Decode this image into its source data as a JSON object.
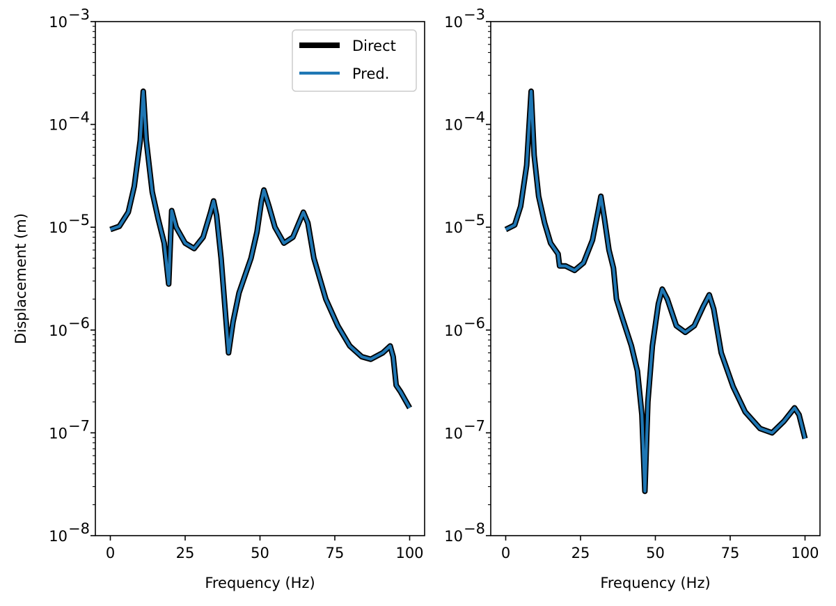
{
  "chart_data": [
    {
      "type": "line",
      "xlabel": "Frequency (Hz)",
      "ylabel": "Displacement (m)",
      "yscale": "log",
      "xlim": [
        -5,
        105
      ],
      "ylim": [
        1e-08,
        0.001
      ],
      "xticks": [
        "0",
        "25",
        "50",
        "75",
        "100"
      ],
      "yticks": [
        {
          "base": "10",
          "exp": "−8"
        },
        {
          "base": "10",
          "exp": "−7"
        },
        {
          "base": "10",
          "exp": "−6"
        },
        {
          "base": "10",
          "exp": "−5"
        },
        {
          "base": "10",
          "exp": "−4"
        },
        {
          "base": "10",
          "exp": "−3"
        }
      ],
      "grid": false,
      "legend": {
        "placement": "upper-right",
        "entries": [
          "Direct",
          "Pred."
        ]
      },
      "series": [
        {
          "name": "Direct",
          "color": "#000000",
          "points": [
            [
              0,
              9.5e-06
            ],
            [
              3,
              1.02e-05
            ],
            [
              6,
              1.4e-05
            ],
            [
              8,
              2.5e-05
            ],
            [
              10,
              7e-05
            ],
            [
              11,
              0.00021
            ],
            [
              12,
              7e-05
            ],
            [
              14,
              2.2e-05
            ],
            [
              16,
              1.2e-05
            ],
            [
              18,
              7e-06
            ],
            [
              19.5,
              2.8e-06
            ],
            [
              20.5,
              1.45e-05
            ],
            [
              22,
              1e-05
            ],
            [
              25,
              7e-06
            ],
            [
              28,
              6.2e-06
            ],
            [
              31,
              8e-06
            ],
            [
              33.5,
              1.4e-05
            ],
            [
              34.5,
              1.8e-05
            ],
            [
              35.5,
              1.3e-05
            ],
            [
              37,
              5e-06
            ],
            [
              39.5,
              6e-07
            ],
            [
              41,
              1.2e-06
            ],
            [
              43,
              2.3e-06
            ],
            [
              47,
              5e-06
            ],
            [
              49,
              9e-06
            ],
            [
              50.5,
              1.8e-05
            ],
            [
              51.3,
              2.3e-05
            ],
            [
              53,
              1.6e-05
            ],
            [
              55,
              1e-05
            ],
            [
              58,
              7e-06
            ],
            [
              61,
              8e-06
            ],
            [
              63,
              1.1e-05
            ],
            [
              64.5,
              1.4e-05
            ],
            [
              66,
              1.1e-05
            ],
            [
              68,
              5e-06
            ],
            [
              72,
              2e-06
            ],
            [
              76,
              1.1e-06
            ],
            [
              80,
              7e-07
            ],
            [
              84,
              5.5e-07
            ],
            [
              87,
              5.2e-07
            ],
            [
              91,
              6e-07
            ],
            [
              93.5,
              7e-07
            ],
            [
              94.5,
              5.5e-07
            ],
            [
              95.5,
              2.9e-07
            ],
            [
              97,
              2.5e-07
            ],
            [
              100,
              1.75e-07
            ]
          ]
        },
        {
          "name": "Pred.",
          "color": "#1f77b4",
          "points": [
            [
              0,
              9.5e-06
            ],
            [
              3,
              1.02e-05
            ],
            [
              6,
              1.4e-05
            ],
            [
              8,
              2.5e-05
            ],
            [
              10,
              7e-05
            ],
            [
              11,
              0.00021
            ],
            [
              12,
              7e-05
            ],
            [
              14,
              2.2e-05
            ],
            [
              16,
              1.2e-05
            ],
            [
              18,
              7e-06
            ],
            [
              19.5,
              2.8e-06
            ],
            [
              20.5,
              1.45e-05
            ],
            [
              22,
              1e-05
            ],
            [
              25,
              7e-06
            ],
            [
              28,
              6.2e-06
            ],
            [
              31,
              8e-06
            ],
            [
              33.5,
              1.4e-05
            ],
            [
              34.5,
              1.8e-05
            ],
            [
              35.5,
              1.3e-05
            ],
            [
              37,
              5e-06
            ],
            [
              39.5,
              6e-07
            ],
            [
              41,
              1.2e-06
            ],
            [
              43,
              2.3e-06
            ],
            [
              47,
              5e-06
            ],
            [
              49,
              9e-06
            ],
            [
              50.5,
              1.8e-05
            ],
            [
              51.3,
              2.3e-05
            ],
            [
              53,
              1.6e-05
            ],
            [
              55,
              1e-05
            ],
            [
              58,
              7e-06
            ],
            [
              61,
              8e-06
            ],
            [
              63,
              1.1e-05
            ],
            [
              64.5,
              1.4e-05
            ],
            [
              66,
              1.1e-05
            ],
            [
              68,
              5e-06
            ],
            [
              72,
              2e-06
            ],
            [
              76,
              1.1e-06
            ],
            [
              80,
              7e-07
            ],
            [
              84,
              5.5e-07
            ],
            [
              87,
              5.2e-07
            ],
            [
              91,
              6e-07
            ],
            [
              93.5,
              7e-07
            ],
            [
              94.5,
              5.5e-07
            ],
            [
              95.5,
              2.9e-07
            ],
            [
              97,
              2.5e-07
            ],
            [
              100,
              1.75e-07
            ]
          ]
        }
      ]
    },
    {
      "type": "line",
      "xlabel": "Frequency (Hz)",
      "ylabel": "",
      "yscale": "log",
      "xlim": [
        -5,
        105
      ],
      "ylim": [
        1e-08,
        0.001
      ],
      "xticks": [
        "0",
        "25",
        "50",
        "75",
        "100"
      ],
      "yticks": [
        {
          "base": "10",
          "exp": "−8"
        },
        {
          "base": "10",
          "exp": "−7"
        },
        {
          "base": "10",
          "exp": "−6"
        },
        {
          "base": "10",
          "exp": "−5"
        },
        {
          "base": "10",
          "exp": "−4"
        },
        {
          "base": "10",
          "exp": "−3"
        }
      ],
      "grid": false,
      "legend": null,
      "series": [
        {
          "name": "Direct",
          "color": "#000000",
          "points": [
            [
              0,
              9.5e-06
            ],
            [
              3,
              1.05e-05
            ],
            [
              5,
              1.6e-05
            ],
            [
              7,
              4e-05
            ],
            [
              8.5,
              0.00021
            ],
            [
              9.5,
              5e-05
            ],
            [
              11,
              2e-05
            ],
            [
              13,
              1.1e-05
            ],
            [
              15,
              7e-06
            ],
            [
              17.5,
              5.5e-06
            ],
            [
              18,
              4.2e-06
            ],
            [
              20,
              4.2e-06
            ],
            [
              23,
              3.8e-06
            ],
            [
              26,
              4.5e-06
            ],
            [
              29,
              7.5e-06
            ],
            [
              31,
              1.5e-05
            ],
            [
              31.8,
              2e-05
            ],
            [
              33,
              1.2e-05
            ],
            [
              34.5,
              6e-06
            ],
            [
              36,
              4e-06
            ],
            [
              37,
              2e-06
            ],
            [
              39,
              1.3e-06
            ],
            [
              42,
              7e-07
            ],
            [
              44,
              4e-07
            ],
            [
              45.5,
              1.5e-07
            ],
            [
              46.5,
              2.7e-08
            ],
            [
              47.5,
              2e-07
            ],
            [
              49,
              7e-07
            ],
            [
              51,
              1.8e-06
            ],
            [
              52.3,
              2.5e-06
            ],
            [
              54,
              2e-06
            ],
            [
              57,
              1.1e-06
            ],
            [
              60,
              9.5e-07
            ],
            [
              63,
              1.1e-06
            ],
            [
              66,
              1.7e-06
            ],
            [
              68,
              2.2e-06
            ],
            [
              69.5,
              1.6e-06
            ],
            [
              72,
              6e-07
            ],
            [
              76,
              2.8e-07
            ],
            [
              80,
              1.6e-07
            ],
            [
              85,
              1.1e-07
            ],
            [
              89,
              1e-07
            ],
            [
              93,
              1.3e-07
            ],
            [
              96.5,
              1.75e-07
            ],
            [
              98,
              1.5e-07
            ],
            [
              100,
              8.8e-08
            ]
          ]
        },
        {
          "name": "Pred.",
          "color": "#1f77b4",
          "points": [
            [
              0,
              9.5e-06
            ],
            [
              3,
              1.05e-05
            ],
            [
              5,
              1.6e-05
            ],
            [
              7,
              4e-05
            ],
            [
              8.5,
              0.00021
            ],
            [
              9.5,
              5e-05
            ],
            [
              11,
              2e-05
            ],
            [
              13,
              1.1e-05
            ],
            [
              15,
              7e-06
            ],
            [
              17.5,
              5.5e-06
            ],
            [
              18,
              4.2e-06
            ],
            [
              20,
              4.2e-06
            ],
            [
              23,
              3.8e-06
            ],
            [
              26,
              4.5e-06
            ],
            [
              29,
              7.5e-06
            ],
            [
              31,
              1.5e-05
            ],
            [
              31.8,
              2e-05
            ],
            [
              33,
              1.2e-05
            ],
            [
              34.5,
              6e-06
            ],
            [
              36,
              4e-06
            ],
            [
              37,
              2e-06
            ],
            [
              39,
              1.3e-06
            ],
            [
              42,
              7e-07
            ],
            [
              44,
              4e-07
            ],
            [
              45.5,
              1.5e-07
            ],
            [
              46.5,
              2.7e-08
            ],
            [
              47.5,
              2e-07
            ],
            [
              49,
              7e-07
            ],
            [
              51,
              1.8e-06
            ],
            [
              52.3,
              2.5e-06
            ],
            [
              54,
              2e-06
            ],
            [
              57,
              1.1e-06
            ],
            [
              60,
              9.5e-07
            ],
            [
              63,
              1.1e-06
            ],
            [
              66,
              1.7e-06
            ],
            [
              68,
              2.2e-06
            ],
            [
              69.5,
              1.6e-06
            ],
            [
              72,
              6e-07
            ],
            [
              76,
              2.8e-07
            ],
            [
              80,
              1.6e-07
            ],
            [
              85,
              1.1e-07
            ],
            [
              89,
              1e-07
            ],
            [
              93,
              1.3e-07
            ],
            [
              96.5,
              1.75e-07
            ],
            [
              98,
              1.5e-07
            ],
            [
              100,
              8.8e-08
            ]
          ]
        }
      ]
    }
  ]
}
